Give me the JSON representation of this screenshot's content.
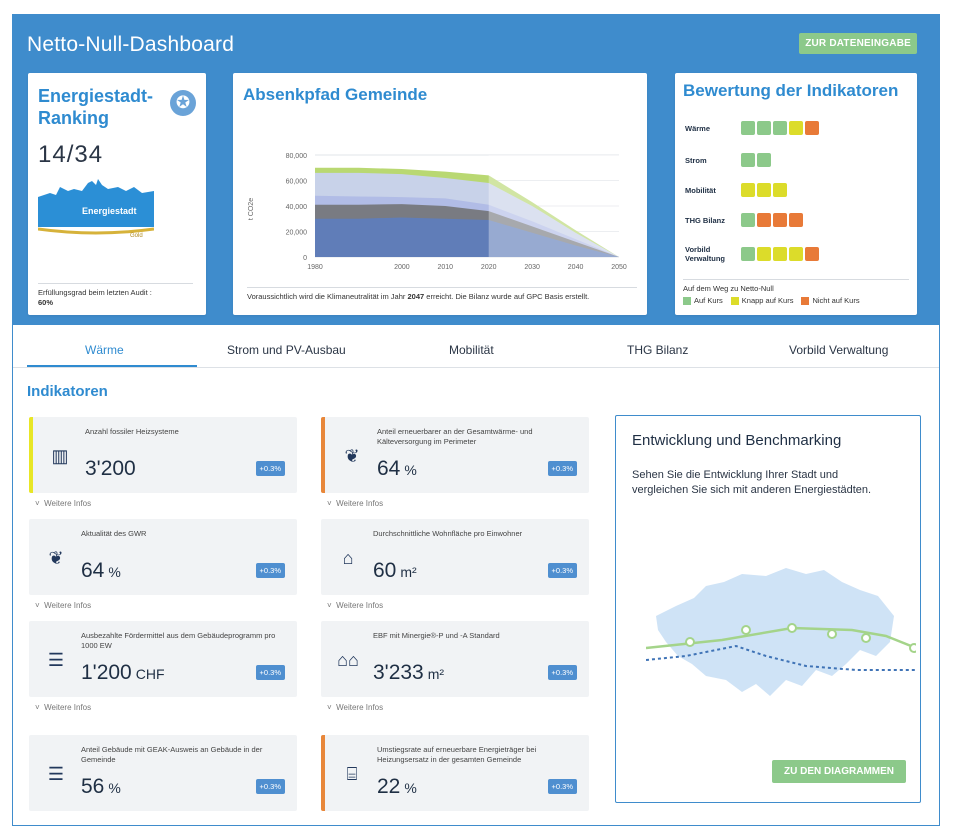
{
  "app": {
    "title": "Netto-Null-Dashboard",
    "entry_button": "ZUR DATENEINGABE"
  },
  "ranking": {
    "title": "Energiestadt-Ranking",
    "value": "14/34",
    "logo_text": "Energiestadt",
    "logo_sub": "Gold",
    "footer_prefix": "Erfüllungsgrad beim letzten Audit :",
    "footer_value": "60%"
  },
  "path": {
    "title": "Absenkpfad Gemeinde",
    "y_axis_label": "t CO2e",
    "footer_pre": "Voraussichtlich wird die Klimaneutralität im Jahr",
    "footer_year": "2047",
    "footer_post": "erreicht. Die Bilanz wurde auf GPC Basis erstellt."
  },
  "chart_data": {
    "type": "area",
    "x": [
      1980,
      1990,
      2000,
      2010,
      2020,
      2030,
      2040,
      2050
    ],
    "ylim": [
      0,
      80000
    ],
    "y_ticks": [
      "0",
      "20,000",
      "40,000",
      "60,000",
      "80,000"
    ],
    "x_ticks": [
      "1980",
      "2000",
      "2010",
      "2020",
      "2030",
      "2040",
      "2050"
    ],
    "series": [
      {
        "values": [
          70000,
          70000,
          69000,
          67000,
          64000,
          43000,
          21000,
          0
        ]
      },
      {
        "values": [
          66000,
          66000,
          65000,
          62000,
          58000,
          40000,
          19000,
          0
        ]
      },
      {
        "values": [
          48000,
          47500,
          47000,
          46000,
          41000,
          28000,
          14000,
          0
        ]
      },
      {
        "values": [
          41000,
          41000,
          41500,
          40000,
          36000,
          24000,
          12000,
          0
        ]
      },
      {
        "values": [
          30000,
          30000,
          31000,
          30000,
          29000,
          19000,
          9000,
          0
        ]
      }
    ],
    "colors": [
      "#b5d66a",
      "#c8d2ef",
      "#b0bbe6",
      "#707070",
      "#5c7ec2"
    ]
  },
  "evaluation": {
    "title": "Bewertung der Indikatoren",
    "rows": [
      {
        "label": "Wärme",
        "ratings": [
          "g",
          "g",
          "g",
          "y",
          "o"
        ]
      },
      {
        "label": "Strom",
        "ratings": [
          "g",
          "g"
        ]
      },
      {
        "label": "Mobilität",
        "ratings": [
          "y",
          "y",
          "y"
        ]
      },
      {
        "label": "THG Bilanz",
        "ratings": [
          "g",
          "o",
          "o",
          "o"
        ]
      },
      {
        "label": "Vorbild Verwaltung",
        "ratings": [
          "g",
          "y",
          "y",
          "y",
          "o"
        ]
      }
    ],
    "footer_title": "Auf dem Weg zu Netto-Null",
    "legend": [
      {
        "label": "Auf Kurs",
        "color": "#8cc98a"
      },
      {
        "label": "Knapp auf Kurs",
        "color": "#dcdc2a"
      },
      {
        "label": "Nicht auf Kurs",
        "color": "#e87a38"
      }
    ]
  },
  "tabs": [
    "Wärme",
    "Strom und PV-Ausbau",
    "Mobilität",
    "THG Bilanz",
    "Vorbild Verwaltung"
  ],
  "indicators_title": "Indikatoren",
  "more_label": "Weitere Infos",
  "indicators": [
    {
      "label": "Anzahl fossiler Heizsysteme",
      "value": "3'200",
      "unit": "",
      "chip": "+0.3%",
      "icon": "heater-icon"
    },
    {
      "label": "Anteil erneuerbarer an der Gesamtwärme- und Kälteversorgung im Perimeter",
      "value": "64",
      "unit": "%",
      "chip": "+0.3%",
      "icon": "leaf-icon"
    },
    {
      "label": "Aktualität des GWR",
      "value": "64",
      "unit": "%",
      "chip": "+0.3%",
      "icon": "leaf-icon"
    },
    {
      "label": "Durchschnittliche Wohnfläche pro Einwohner",
      "value": "60",
      "unit": "m²",
      "chip": "+0.3%",
      "icon": "house-question-icon"
    },
    {
      "label": "Ausbezahlte Fördermittel aus dem Gebäudeprogramm pro 1000 EW",
      "value": "1'200",
      "unit": "CHF",
      "chip": "+0.3%",
      "icon": "money-icon"
    },
    {
      "label": "EBF mit Minergie®-P und -A Standard",
      "value": "3'233",
      "unit": "m²",
      "chip": "+0.3%",
      "icon": "houses-icon"
    },
    {
      "label": "Anteil Gebäude mit GEAK-Ausweis an Gebäude in der Gemeinde",
      "value": "56",
      "unit": "%",
      "chip": "+0.3%",
      "icon": "money-icon"
    },
    {
      "label": "Umstiegsrate auf erneuerbare Energieträger bei Heizungsersatz in der gesamten Gemeinde",
      "value": "22",
      "unit": "%",
      "chip": "+0.3%",
      "icon": "building-icon"
    }
  ],
  "benchmark": {
    "title": "Entwicklung und Benchmarking",
    "text": "Sehen Sie die Entwicklung Ihrer Stadt und vergleichen Sie sich mit anderen Energiestädten.",
    "button": "ZU DEN DIAGRAMMEN"
  }
}
